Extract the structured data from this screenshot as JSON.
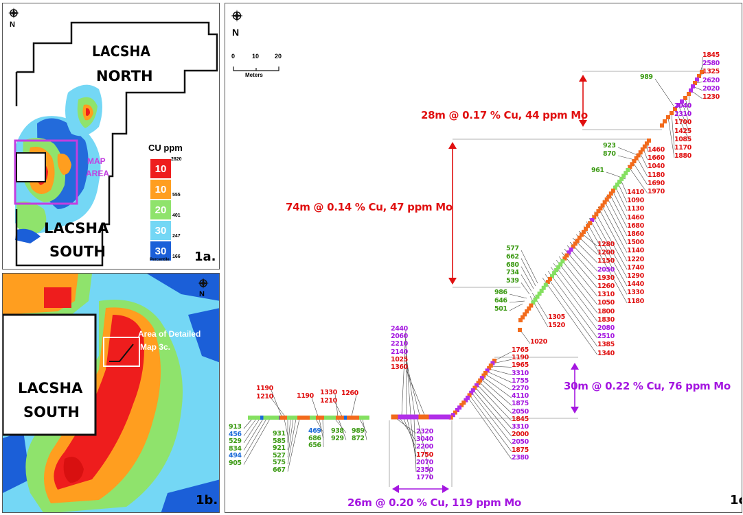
{
  "panel_1a": {
    "label": "1a.",
    "north": "N",
    "region_north": [
      "LACSHA",
      "NORTH"
    ],
    "region_south": [
      "LACSHA",
      "SOUTH"
    ],
    "map_area": [
      "MAP",
      "AREA"
    ],
    "legend": {
      "title": "CU ppm",
      "boxes": [
        {
          "text": "10",
          "color": "#ee1d1d"
        },
        {
          "text": "10",
          "color": "#ff9e1f"
        },
        {
          "text": "20",
          "color": "#8fe36c"
        },
        {
          "text": "30",
          "color": "#74d7f5"
        },
        {
          "text": "30",
          "color": "#1b5fd8"
        }
      ],
      "thresholds": [
        "2820",
        "555",
        "401",
        "247",
        "166"
      ],
      "footer": "Percentile"
    }
  },
  "panel_1b": {
    "label": "1b.",
    "north": "N",
    "region": [
      "LACSHA",
      "SOUTH"
    ],
    "detail": [
      "Area of Detailed",
      "Map 3c."
    ]
  },
  "panel_1c": {
    "label": "1c",
    "north": "N",
    "scale": {
      "ticks": [
        "0",
        "10",
        "20"
      ],
      "unit": "Meters"
    },
    "intervals": [
      {
        "text": "28m @ 0.17 % Cu, 44 ppm Mo",
        "color": "#e01010"
      },
      {
        "text": "74m @ 0.14 % Cu, 47 ppm Mo",
        "color": "#e01010"
      },
      {
        "text": "30m @ 0.22 % Cu, 76 ppm Mo",
        "color": "#a416e0"
      },
      {
        "text": "26m @ 0.20 % Cu, 119 ppm Mo",
        "color": "#a416e0"
      }
    ],
    "sample_groups": [
      {
        "labels": [
          [
            "1845",
            "r"
          ],
          [
            "2580",
            "p"
          ],
          [
            "1325",
            "r"
          ],
          [
            "2620",
            "p"
          ],
          [
            "2020",
            "p"
          ],
          [
            "1230",
            "r"
          ]
        ]
      },
      {
        "labels": [
          [
            "989",
            "g"
          ]
        ]
      },
      {
        "labels": [
          [
            "2040",
            "p"
          ],
          [
            "2310",
            "p"
          ],
          [
            "1700",
            "r"
          ],
          [
            "1425",
            "r"
          ],
          [
            "1085",
            "r"
          ],
          [
            "1170",
            "r"
          ],
          [
            "1880",
            "r"
          ]
        ]
      },
      {
        "labels": [
          [
            "923",
            "g"
          ],
          [
            "870",
            "g"
          ]
        ]
      },
      {
        "labels": [
          [
            "961",
            "g"
          ]
        ]
      },
      {
        "labels": [
          [
            "1460",
            "r"
          ],
          [
            "1660",
            "r"
          ],
          [
            "1040",
            "r"
          ],
          [
            "1180",
            "r"
          ],
          [
            "1690",
            "r"
          ],
          [
            "1970",
            "r"
          ]
        ]
      },
      {
        "labels": [
          [
            "1410",
            "r"
          ],
          [
            "1090",
            "r"
          ],
          [
            "1130",
            "r"
          ],
          [
            "1460",
            "r"
          ],
          [
            "1680",
            "r"
          ],
          [
            "1860",
            "r"
          ],
          [
            "1500",
            "r"
          ],
          [
            "1140",
            "r"
          ],
          [
            "1220",
            "r"
          ],
          [
            "1740",
            "r"
          ],
          [
            "1290",
            "r"
          ],
          [
            "1440",
            "r"
          ],
          [
            "1330",
            "r"
          ],
          [
            "1180",
            "r"
          ]
        ]
      },
      {
        "labels": [
          [
            "1280",
            "r"
          ],
          [
            "1200",
            "r"
          ],
          [
            "1150",
            "r"
          ],
          [
            "2050",
            "p"
          ],
          [
            "1930",
            "r"
          ],
          [
            "1260",
            "r"
          ],
          [
            "1310",
            "r"
          ],
          [
            "1050",
            "r"
          ],
          [
            "1800",
            "r"
          ],
          [
            "1830",
            "r"
          ],
          [
            "2080",
            "p"
          ],
          [
            "2510",
            "p"
          ],
          [
            "1385",
            "r"
          ],
          [
            "1340",
            "r"
          ]
        ]
      },
      {
        "labels": [
          [
            "577",
            "g"
          ],
          [
            "662",
            "g"
          ],
          [
            "680",
            "g"
          ],
          [
            "734",
            "g"
          ],
          [
            "539",
            "g"
          ]
        ]
      },
      {
        "labels": [
          [
            "986",
            "g"
          ],
          [
            "646",
            "g"
          ],
          [
            "501",
            "g"
          ]
        ]
      },
      {
        "labels": [
          [
            "1305",
            "r"
          ],
          [
            "1520",
            "r"
          ]
        ]
      },
      {
        "labels": [
          [
            "1020",
            "r"
          ]
        ]
      },
      {
        "labels": [
          [
            "2440",
            "p"
          ],
          [
            "2060",
            "p"
          ],
          [
            "2210",
            "p"
          ],
          [
            "2140",
            "p"
          ],
          [
            "1025",
            "r"
          ],
          [
            "1360",
            "r"
          ]
        ]
      },
      {
        "labels": [
          [
            "1765",
            "r"
          ],
          [
            "1190",
            "r"
          ],
          [
            "1965",
            "r"
          ],
          [
            "3310",
            "p"
          ],
          [
            "1755",
            "p"
          ],
          [
            "2270",
            "p"
          ],
          [
            "4110",
            "p"
          ],
          [
            "1875",
            "p"
          ],
          [
            "2050",
            "p"
          ],
          [
            "1845",
            "r"
          ],
          [
            "3310",
            "p"
          ],
          [
            "2000",
            "r"
          ],
          [
            "2050",
            "p"
          ],
          [
            "1875",
            "r"
          ],
          [
            "2380",
            "p"
          ]
        ]
      },
      {
        "labels": [
          [
            "1190",
            "r"
          ],
          [
            "1210",
            "r"
          ]
        ]
      },
      {
        "labels": [
          [
            "1190",
            "r"
          ]
        ]
      },
      {
        "labels": [
          [
            "1330",
            "r"
          ],
          [
            "1210",
            "r"
          ]
        ]
      },
      {
        "labels": [
          [
            "1260",
            "r"
          ]
        ]
      },
      {
        "labels": [
          [
            "913",
            "g"
          ],
          [
            "456",
            "b"
          ],
          [
            "529",
            "g"
          ],
          [
            "834",
            "g"
          ],
          [
            "494",
            "b"
          ],
          [
            "905",
            "g"
          ]
        ]
      },
      {
        "labels": [
          [
            "931",
            "g"
          ],
          [
            "585",
            "g"
          ],
          [
            "921",
            "g"
          ],
          [
            "527",
            "g"
          ],
          [
            "575",
            "g"
          ],
          [
            "667",
            "g"
          ]
        ]
      },
      {
        "labels": [
          [
            "469",
            "b"
          ],
          [
            "686",
            "g"
          ],
          [
            "656",
            "g"
          ]
        ]
      },
      {
        "labels": [
          [
            "938",
            "g"
          ],
          [
            "929",
            "g"
          ]
        ]
      },
      {
        "labels": [
          [
            "989",
            "g"
          ],
          [
            "872",
            "g"
          ]
        ]
      },
      {
        "labels": [
          [
            "2320",
            "p"
          ],
          [
            "3040",
            "p"
          ],
          [
            "2200",
            "p"
          ],
          [
            "1750",
            "r"
          ],
          [
            "2070",
            "p"
          ],
          [
            "2350",
            "p"
          ],
          [
            "1770",
            "p"
          ]
        ]
      }
    ]
  },
  "colors": {
    "red": "#e01010",
    "purple": "#a416e0",
    "green": "#3c9a14",
    "blue": "#1b6ad8",
    "orange": "#f26a1b",
    "lime": "#84e060"
  }
}
